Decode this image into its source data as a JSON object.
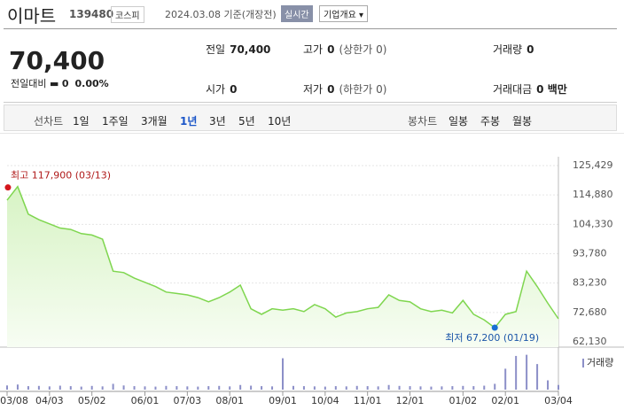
{
  "header": {
    "name": "이마트",
    "code": "139480",
    "market": "코스피",
    "date": "2024.03.08 기준(개장전)",
    "realtime": "실시간",
    "company": "기업개요 ▾"
  },
  "quote": {
    "price": "70,400",
    "change_label": "전일대비",
    "change": "0",
    "change_pct": "0.00%"
  },
  "stats": [
    {
      "label": "전일",
      "value": "70,400",
      "note": ""
    },
    {
      "label": "고가",
      "value": "0",
      "note": "(상한가 0)"
    },
    {
      "label": "거래량",
      "value": "0",
      "note": ""
    },
    {
      "label": "시가",
      "value": "0",
      "note": ""
    },
    {
      "label": "저가",
      "value": "0",
      "note": "(하한가 0)"
    },
    {
      "label": "거래대금",
      "value": "0 백만",
      "note": ""
    }
  ],
  "tabs": {
    "line_label": "선차트",
    "line_items": [
      "1일",
      "1주일",
      "3개월",
      "1년",
      "3년",
      "5년",
      "10년"
    ],
    "selected": 3,
    "candle_label": "봉차트",
    "candle_items": [
      "일봉",
      "주봉",
      "월봉"
    ]
  },
  "chart_data": {
    "type": "line",
    "color": "#7fd64f",
    "fill": "#e9f8df",
    "grid": true,
    "categories": [
      "03/08",
      null,
      null,
      null,
      "04/03",
      null,
      null,
      null,
      "05/02",
      null,
      null,
      null,
      null,
      "06/01",
      null,
      null,
      null,
      "07/03",
      null,
      null,
      null,
      "08/01",
      null,
      null,
      null,
      null,
      "09/01",
      null,
      null,
      null,
      "10/04",
      null,
      null,
      null,
      "11/01",
      null,
      null,
      null,
      "12/01",
      null,
      null,
      null,
      null,
      "01/02",
      null,
      null,
      null,
      "02/01",
      null,
      null,
      null,
      null,
      "03/04"
    ],
    "series": [
      {
        "name": "종가",
        "color": "#7fd64f",
        "values": [
          113000,
          117900,
          108000,
          106000,
          104500,
          103000,
          102500,
          101000,
          100500,
          99000,
          87500,
          87000,
          85000,
          83500,
          82000,
          80000,
          79500,
          79000,
          78000,
          76500,
          78000,
          80000,
          82500,
          74000,
          72000,
          74000,
          73500,
          74000,
          73000,
          75500,
          74000,
          71000,
          72500,
          73000,
          74000,
          74500,
          79000,
          77000,
          76500,
          74000,
          73000,
          73500,
          72500,
          77000,
          72000,
          70000,
          67200,
          72000,
          73000,
          87500,
          82000,
          76000,
          70400
        ]
      },
      {
        "name": "거래량",
        "color": "#8c8fc8",
        "values": [
          180000,
          220000,
          150000,
          160000,
          140000,
          170000,
          150000,
          130000,
          160000,
          140000,
          250000,
          180000,
          150000,
          140000,
          130000,
          160000,
          150000,
          140000,
          130000,
          150000,
          160000,
          140000,
          200000,
          170000,
          150000,
          140000,
          1350000,
          160000,
          150000,
          140000,
          130000,
          150000,
          140000,
          160000,
          150000,
          140000,
          200000,
          160000,
          150000,
          140000,
          130000,
          140000,
          150000,
          160000,
          150000,
          170000,
          250000,
          900000,
          1450000,
          1500000,
          1100000,
          400000,
          200000
        ]
      }
    ],
    "ylim": [
      62130,
      125429
    ],
    "yticks": [
      {
        "value": 62130,
        "label": "62,130"
      },
      {
        "value": 72680,
        "label": "72,680"
      },
      {
        "value": 83230,
        "label": "83,230"
      },
      {
        "value": 93780,
        "label": "93,780"
      },
      {
        "value": 104330,
        "label": "104,330"
      },
      {
        "value": 114880,
        "label": "114,880"
      },
      {
        "value": 125429,
        "label": "125,429"
      }
    ],
    "volume_ylim": [
      0,
      1600000
    ],
    "annotations": [
      "최고 117,900 (03/13)",
      "최저 67,200 (01/19)"
    ]
  }
}
